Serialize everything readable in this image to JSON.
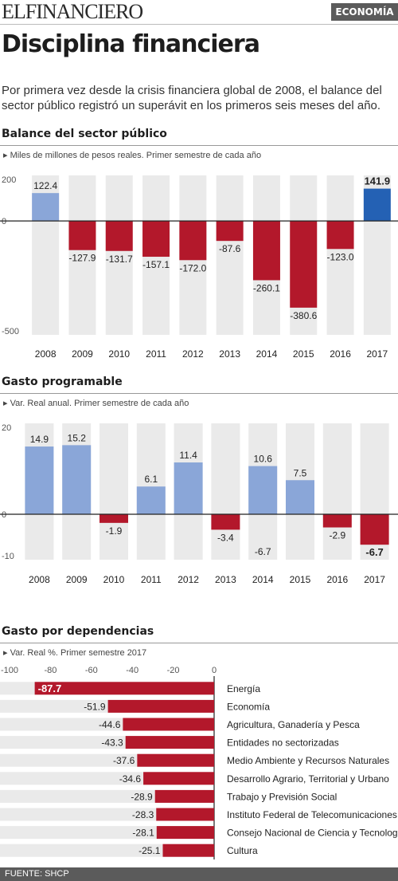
{
  "header": {
    "logo": "ELFINANCIERO",
    "section": "ECONOMÍA"
  },
  "title": "Disciplina financiera",
  "intro": "Por primera vez desde la crisis financiera global de 2008, el balance del sector público registró un superávit en los primeros seis meses del año.",
  "colors": {
    "positive": "#8aa6d8",
    "positive_highlight": "#2461b4",
    "negative": "#b3182b",
    "stripe": "#dcdcdc"
  },
  "chart_data": [
    {
      "type": "bar",
      "title": "Balance del sector público",
      "subtitle": "Miles de millones de pesos reales. Primer semestre de cada año",
      "categories": [
        "2008",
        "2009",
        "2010",
        "2011",
        "2012",
        "2013",
        "2014",
        "2015",
        "2016",
        "2017"
      ],
      "values": [
        122.4,
        -127.9,
        -131.7,
        -157.1,
        -172.0,
        -87.6,
        -260.1,
        -380.6,
        -123.0,
        141.9
      ],
      "labels": [
        "122.4",
        "-127.9",
        "-131.7",
        "-157.1",
        "-172.0",
        "-87.6",
        "-260.1",
        "-380.6",
        "-123.0",
        "141.9"
      ],
      "highlight": [
        "2017"
      ],
      "yticks": [
        "200",
        "0",
        "-500"
      ],
      "ylim": [
        -500,
        200
      ],
      "grid": true
    },
    {
      "type": "bar",
      "title": "Gasto programable",
      "subtitle": "Var. Real anual. Primer semestre de cada año",
      "categories": [
        "2008",
        "2009",
        "2010",
        "2011",
        "2012",
        "2013",
        "2014",
        "2015",
        "2016",
        "2017"
      ],
      "values": [
        14.9,
        15.2,
        -1.9,
        6.1,
        11.4,
        -3.4,
        10.6,
        7.5,
        -2.9,
        -6.7
      ],
      "labels": [
        "14.9",
        "15.2",
        "-1.9",
        "6.1",
        "11.4",
        "-3.4",
        "10.6",
        "7.5",
        "-2.9",
        "-6.7"
      ],
      "annotations": [
        {
          "category": "2014",
          "text": "-6.7"
        }
      ],
      "highlight": [
        "2017"
      ],
      "yticks": [
        "20",
        "0",
        "-10"
      ],
      "ylim": [
        -10,
        20
      ],
      "grid": true
    },
    {
      "type": "bar",
      "orientation": "horizontal",
      "title": "Gasto por dependencias",
      "subtitle": "Var. Real %. Primer semestre 2017",
      "categories": [
        "Energía",
        "Economía",
        "Agricultura, Ganadería y Pesca",
        "Entidades no sectorizadas",
        "Medio Ambiente y Recursos Naturales",
        "Desarrollo Agrario, Territorial y Urbano",
        "Trabajo y Previsión Social",
        "Instituto Federal de Telecomunicaciones",
        "Consejo Nacional de Ciencia y Tecnología",
        "Cultura"
      ],
      "values": [
        -87.7,
        -51.9,
        -44.6,
        -43.3,
        -37.6,
        -34.6,
        -28.9,
        -28.3,
        -28.1,
        -25.1
      ],
      "labels": [
        "-87.7",
        "-51.9",
        "-44.6",
        "-43.3",
        "-37.6",
        "-34.6",
        "-28.9",
        "-28.3",
        "-28.1",
        "-25.1"
      ],
      "highlight": [
        "Energía"
      ],
      "xticks": [
        "-100",
        "-80",
        "-60",
        "-40",
        "-20",
        "0"
      ],
      "xlim": [
        -100,
        0
      ],
      "grid": true
    }
  ],
  "source": "FUENTE: SHCP"
}
